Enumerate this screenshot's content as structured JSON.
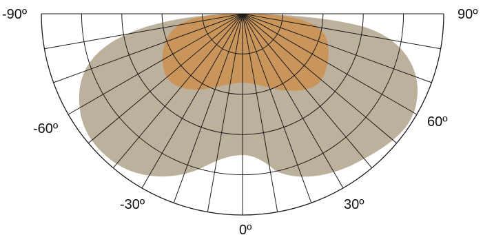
{
  "angle_labels": {
    "neg90": "-90º",
    "pos90": "90º",
    "neg60": "-60º",
    "pos60": "60º",
    "neg30": "-30º",
    "pos30": "30º",
    "zero": "0º"
  },
  "colors": {
    "outer_distribution": "#bcb19c",
    "inner_distribution": "#c9955b",
    "grid_lines": "#1a1a1a",
    "background": "#ffffff"
  },
  "grid": {
    "radial_spokes_every_deg": 10,
    "concentric_rings": 5,
    "span_deg": [
      -90,
      90
    ]
  }
}
